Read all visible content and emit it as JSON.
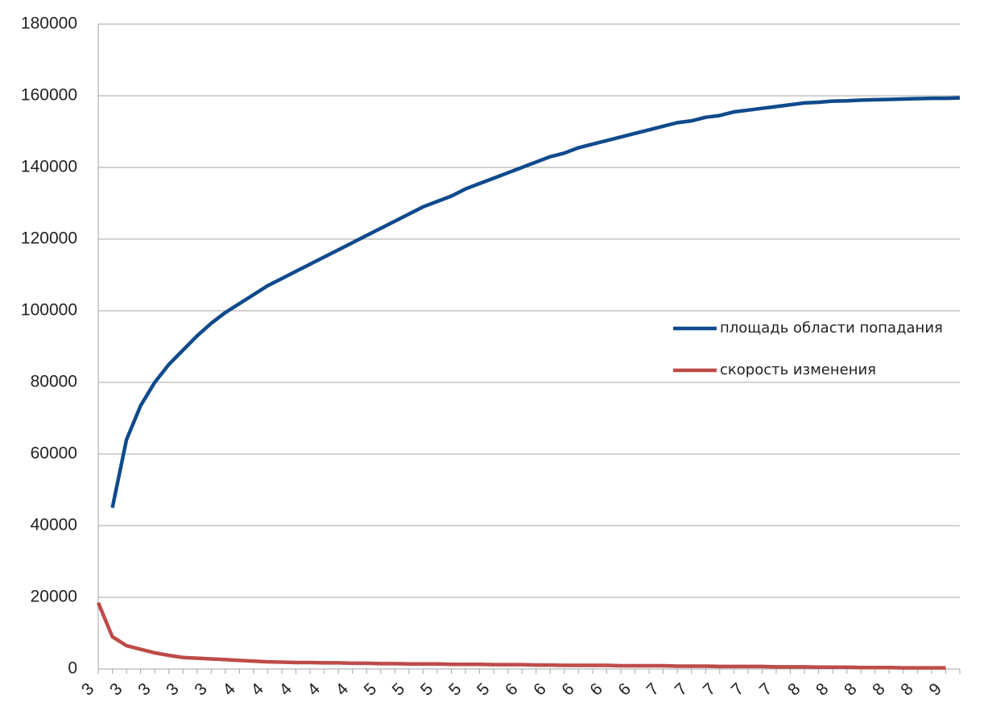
{
  "chart_data": {
    "type": "line",
    "categories": [
      "3",
      null,
      "3",
      null,
      "3",
      null,
      "3",
      null,
      "3",
      null,
      "4",
      null,
      "4",
      null,
      "4",
      null,
      "4",
      null,
      "4",
      null,
      "5",
      null,
      "5",
      null,
      "5",
      null,
      "5",
      null,
      "5",
      null,
      "6",
      null,
      "6",
      null,
      "6",
      null,
      "6",
      null,
      "6",
      null,
      "7",
      null,
      "7",
      null,
      "7",
      null,
      "7",
      null,
      "7",
      null,
      "8",
      null,
      "8",
      null,
      "8",
      null,
      "8",
      null,
      "8",
      null,
      "9",
      null
    ],
    "series": [
      {
        "name": "площадь области попадания",
        "color": "#0f4a8c",
        "values": [
          null,
          45000,
          64000,
          73500,
          80000,
          85000,
          89000,
          93000,
          96500,
          99500,
          102000,
          104500,
          107000,
          109000,
          111000,
          113000,
          115000,
          117000,
          119000,
          121000,
          123000,
          125000,
          127000,
          129000,
          130500,
          132000,
          134000,
          135500,
          137000,
          138500,
          140000,
          141500,
          143000,
          144000,
          145500,
          146500,
          147500,
          148500,
          149500,
          150500,
          151500,
          152500,
          153000,
          154000,
          154500,
          155500,
          156000,
          156500,
          157000,
          157500,
          158000,
          158200,
          158500,
          158600,
          158800,
          158900,
          159000,
          159100,
          159200,
          159300,
          159300,
          159400
        ]
      },
      {
        "name": "скорость изменения",
        "color": "#be4b48",
        "values": [
          18500,
          9000,
          6500,
          5500,
          4500,
          3800,
          3200,
          3000,
          2800,
          2600,
          2400,
          2200,
          2000,
          1900,
          1800,
          1800,
          1700,
          1700,
          1600,
          1600,
          1500,
          1500,
          1400,
          1400,
          1400,
          1300,
          1300,
          1300,
          1200,
          1200,
          1200,
          1100,
          1100,
          1000,
          1000,
          1000,
          1000,
          900,
          900,
          900,
          900,
          800,
          800,
          800,
          700,
          700,
          700,
          700,
          600,
          600,
          600,
          500,
          500,
          500,
          400,
          400,
          400,
          300,
          300,
          300,
          300,
          null
        ]
      }
    ],
    "ylim": [
      0,
      180000
    ],
    "yticks": [
      0,
      20000,
      40000,
      60000,
      80000,
      100000,
      120000,
      140000,
      160000,
      180000
    ],
    "grid": true,
    "legend": "right"
  }
}
